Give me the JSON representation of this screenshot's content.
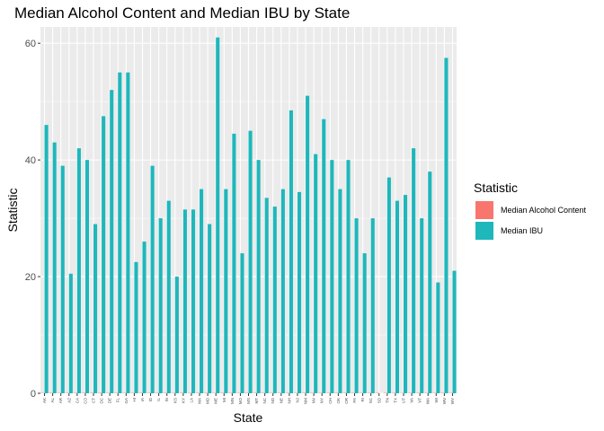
{
  "chart_data": {
    "type": "bar",
    "title": "Median Alcohol Content and Median IBU by State",
    "xlabel": "State",
    "ylabel": "Statistic",
    "ylim": [
      0,
      62.8
    ],
    "yticks": [
      0,
      20,
      40,
      60
    ],
    "grid": true,
    "legend": {
      "title": "Statistic",
      "position": "right"
    },
    "categories": [
      "AK",
      "AL",
      "AR",
      "AZ",
      "CA",
      "CO",
      "CT",
      "DC",
      "DE",
      "FL",
      "GA",
      "HI",
      "IA",
      "ID",
      "IL",
      "IN",
      "KS",
      "KY",
      "LA",
      "MA",
      "MD",
      "ME",
      "MI",
      "MN",
      "MO",
      "MS",
      "MT",
      "NC",
      "ND",
      "NE",
      "NH",
      "NJ",
      "NM",
      "NV",
      "NY",
      "OH",
      "OK",
      "OR",
      "PA",
      "RI",
      "SC",
      "SD",
      "TN",
      "TX",
      "UT",
      "VA",
      "VT",
      "WA",
      "WI",
      "WV",
      "WY"
    ],
    "series": [
      {
        "name": "Median Alcohol Content",
        "color": "#F8766D",
        "values": [
          0.056,
          0.06,
          0.052,
          0.055,
          0.058,
          0.065,
          0.06,
          0.0625,
          0.055,
          0.057,
          0.055,
          0.054,
          0.055,
          0.057,
          0.058,
          0.058,
          0.05,
          0.0625,
          0.052,
          0.054,
          0.058,
          0.051,
          0.062,
          0.0556,
          0.052,
          0.058,
          0.055,
          0.057,
          0.05,
          0.056,
          0.055,
          0.046,
          0.062,
          0.06,
          0.055,
          0.058,
          0.06,
          0.056,
          0.057,
          0.05,
          0.055,
          0.056,
          0.057,
          0.055,
          0.04,
          0.056,
          0.055,
          0.055,
          0.052,
          0.062,
          0.05
        ]
      },
      {
        "name": "Median IBU",
        "color": "#1EB7BB",
        "values": [
          46,
          43,
          39,
          20.5,
          42,
          40,
          29,
          47.5,
          52,
          55,
          55,
          22.5,
          26,
          39,
          30,
          33,
          20,
          31.5,
          31.5,
          35,
          29,
          61,
          35,
          44.5,
          24,
          45,
          40,
          33.5,
          32,
          35,
          48.5,
          34.5,
          51,
          41,
          47,
          40,
          35,
          40,
          30,
          24,
          30,
          0,
          37,
          33,
          34,
          42,
          30,
          38,
          19,
          57.5,
          21
        ]
      }
    ]
  }
}
